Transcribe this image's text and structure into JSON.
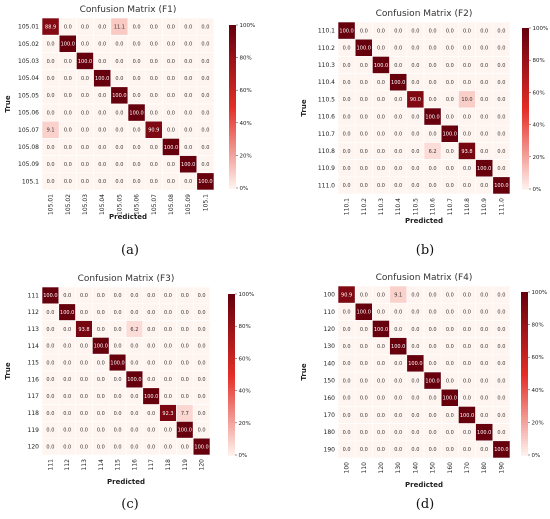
{
  "figure": {
    "panel_labels": [
      "(a)",
      "(b)",
      "(c)",
      "(d)"
    ],
    "colorbar_ticks": [
      "0%",
      "20%",
      "40%",
      "60%",
      "80%",
      "100%"
    ]
  },
  "colors": {
    "low": "#fff5f0",
    "mid": "#e32f27",
    "high": "#67000d",
    "diag_text": "#ffffff",
    "off_text": "#333333"
  },
  "chart_data": [
    {
      "type": "heatmap",
      "title": "Confusion Matrix (F1)",
      "xlabel": "Predicted",
      "ylabel": "True",
      "colorbar_range": [
        0,
        100
      ],
      "labels": [
        "105.01",
        "105.02",
        "105.03",
        "105.04",
        "105.05",
        "105.06",
        "105.07",
        "105.08",
        "105.09",
        "105.1"
      ],
      "x_tick_labels": [
        "105.01",
        "105.02",
        "105.03",
        "105.04",
        "105.05",
        "105.06",
        "105.07",
        "105.08",
        "105.09",
        "105.1"
      ],
      "values": [
        [
          88.9,
          0.0,
          0.0,
          0.0,
          11.1,
          0.0,
          0.0,
          0.0,
          0.0,
          0.0
        ],
        [
          0.0,
          100.0,
          0.0,
          0.0,
          0.0,
          0.0,
          0.0,
          0.0,
          0.0,
          0.0
        ],
        [
          0.0,
          0.0,
          100.0,
          0.0,
          0.0,
          0.0,
          0.0,
          0.0,
          0.0,
          0.0
        ],
        [
          0.0,
          0.0,
          0.0,
          100.0,
          0.0,
          0.0,
          0.0,
          0.0,
          0.0,
          0.0
        ],
        [
          0.0,
          0.0,
          0.0,
          0.0,
          100.0,
          0.0,
          0.0,
          0.0,
          0.0,
          0.0
        ],
        [
          0.0,
          0.0,
          0.0,
          0.0,
          0.0,
          100.0,
          0.0,
          0.0,
          0.0,
          0.0
        ],
        [
          9.1,
          0.0,
          0.0,
          0.0,
          0.0,
          0.0,
          90.9,
          0.0,
          0.0,
          0.0
        ],
        [
          0.0,
          0.0,
          0.0,
          0.0,
          0.0,
          0.0,
          0.0,
          100.0,
          0.0,
          0.0
        ],
        [
          0.0,
          0.0,
          0.0,
          0.0,
          0.0,
          0.0,
          0.0,
          0.0,
          100.0,
          0.0
        ],
        [
          0.0,
          0.0,
          0.0,
          0.0,
          0.0,
          0.0,
          0.0,
          0.0,
          0.0,
          100.0
        ]
      ]
    },
    {
      "type": "heatmap",
      "title": "Confusion Matrix (F2)",
      "xlabel": "Predicted",
      "ylabel": "True",
      "colorbar_range": [
        0,
        100
      ],
      "labels": [
        "110.1",
        "110.2",
        "110.3",
        "110.4",
        "110.5",
        "110.6",
        "110.7",
        "110.8",
        "110.9",
        "111.0"
      ],
      "x_tick_labels": [
        "110.1",
        "110.2",
        "110.3",
        "110.4",
        "110.5",
        "110.6",
        "110.7",
        "110.8",
        "110.9",
        "111.0"
      ],
      "values": [
        [
          100.0,
          0.0,
          0.0,
          0.0,
          0.0,
          0.0,
          0.0,
          0.0,
          0.0,
          0.0
        ],
        [
          0.0,
          100.0,
          0.0,
          0.0,
          0.0,
          0.0,
          0.0,
          0.0,
          0.0,
          0.0
        ],
        [
          0.0,
          0.0,
          100.0,
          0.0,
          0.0,
          0.0,
          0.0,
          0.0,
          0.0,
          0.0
        ],
        [
          0.0,
          0.0,
          0.0,
          100.0,
          0.0,
          0.0,
          0.0,
          0.0,
          0.0,
          0.0
        ],
        [
          0.0,
          0.0,
          0.0,
          0.0,
          90.0,
          0.0,
          0.0,
          10.0,
          0.0,
          0.0
        ],
        [
          0.0,
          0.0,
          0.0,
          0.0,
          0.0,
          100.0,
          0.0,
          0.0,
          0.0,
          0.0
        ],
        [
          0.0,
          0.0,
          0.0,
          0.0,
          0.0,
          0.0,
          100.0,
          0.0,
          0.0,
          0.0
        ],
        [
          0.0,
          0.0,
          0.0,
          0.0,
          0.0,
          6.2,
          0.0,
          93.8,
          0.0,
          0.0
        ],
        [
          0.0,
          0.0,
          0.0,
          0.0,
          0.0,
          0.0,
          0.0,
          0.0,
          100.0,
          0.0
        ],
        [
          0.0,
          0.0,
          0.0,
          0.0,
          0.0,
          0.0,
          0.0,
          0.0,
          0.0,
          100.0
        ]
      ]
    },
    {
      "type": "heatmap",
      "title": "Confusion Matrix (F3)",
      "xlabel": "Predicted",
      "ylabel": "True",
      "colorbar_range": [
        0,
        100
      ],
      "labels": [
        "111",
        "112",
        "113",
        "114",
        "115",
        "116",
        "117",
        "118",
        "119",
        "120"
      ],
      "x_tick_labels": [
        "111",
        "112",
        "113",
        "114",
        "115",
        "116",
        "117",
        "118",
        "119",
        "120"
      ],
      "values": [
        [
          100.0,
          0.0,
          0.0,
          0.0,
          0.0,
          0.0,
          0.0,
          0.0,
          0.0,
          0.0
        ],
        [
          0.0,
          100.0,
          0.0,
          0.0,
          0.0,
          0.0,
          0.0,
          0.0,
          0.0,
          0.0
        ],
        [
          0.0,
          0.0,
          93.8,
          0.0,
          0.0,
          6.2,
          0.0,
          0.0,
          0.0,
          0.0
        ],
        [
          0.0,
          0.0,
          0.0,
          100.0,
          0.0,
          0.0,
          0.0,
          0.0,
          0.0,
          0.0
        ],
        [
          0.0,
          0.0,
          0.0,
          0.0,
          100.0,
          0.0,
          0.0,
          0.0,
          0.0,
          0.0
        ],
        [
          0.0,
          0.0,
          0.0,
          0.0,
          0.0,
          100.0,
          0.0,
          0.0,
          0.0,
          0.0
        ],
        [
          0.0,
          0.0,
          0.0,
          0.0,
          0.0,
          0.0,
          100.0,
          0.0,
          0.0,
          0.0
        ],
        [
          0.0,
          0.0,
          0.0,
          0.0,
          0.0,
          0.0,
          0.0,
          92.3,
          7.7,
          0.0
        ],
        [
          0.0,
          0.0,
          0.0,
          0.0,
          0.0,
          0.0,
          0.0,
          0.0,
          100.0,
          0.0
        ],
        [
          0.0,
          0.0,
          0.0,
          0.0,
          0.0,
          0.0,
          0.0,
          0.0,
          0.0,
          100.0
        ]
      ]
    },
    {
      "type": "heatmap",
      "title": "Confusion Matrix (F4)",
      "xlabel": "Predicted",
      "ylabel": "True",
      "colorbar_range": [
        0,
        100
      ],
      "labels": [
        "100",
        "110",
        "120",
        "130",
        "140",
        "150",
        "160",
        "170",
        "180",
        "190"
      ],
      "x_tick_labels": [
        "100",
        "110",
        "120",
        "130",
        "140",
        "150",
        "160",
        "170",
        "180",
        "190"
      ],
      "values": [
        [
          90.9,
          0.0,
          0.0,
          9.1,
          0.0,
          0.0,
          0.0,
          0.0,
          0.0,
          0.0
        ],
        [
          0.0,
          100.0,
          0.0,
          0.0,
          0.0,
          0.0,
          0.0,
          0.0,
          0.0,
          0.0
        ],
        [
          0.0,
          0.0,
          100.0,
          0.0,
          0.0,
          0.0,
          0.0,
          0.0,
          0.0,
          0.0
        ],
        [
          0.0,
          0.0,
          0.0,
          100.0,
          0.0,
          0.0,
          0.0,
          0.0,
          0.0,
          0.0
        ],
        [
          0.0,
          0.0,
          0.0,
          0.0,
          100.0,
          0.0,
          0.0,
          0.0,
          0.0,
          0.0
        ],
        [
          0.0,
          0.0,
          0.0,
          0.0,
          0.0,
          100.0,
          0.0,
          0.0,
          0.0,
          0.0
        ],
        [
          0.0,
          0.0,
          0.0,
          0.0,
          0.0,
          0.0,
          100.0,
          0.0,
          0.0,
          0.0
        ],
        [
          0.0,
          0.0,
          0.0,
          0.0,
          0.0,
          0.0,
          0.0,
          100.0,
          0.0,
          0.0
        ],
        [
          0.0,
          0.0,
          0.0,
          0.0,
          0.0,
          0.0,
          0.0,
          0.0,
          100.0,
          0.0
        ],
        [
          0.0,
          0.0,
          0.0,
          0.0,
          0.0,
          0.0,
          0.0,
          0.0,
          0.0,
          100.0
        ]
      ]
    }
  ]
}
